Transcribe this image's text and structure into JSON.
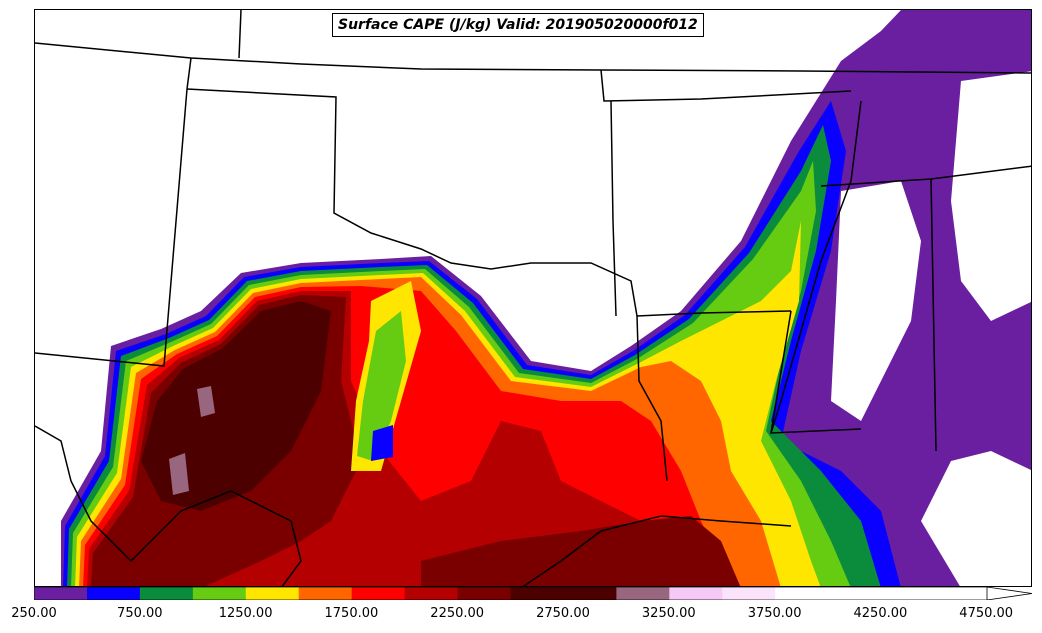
{
  "title": "Surface CAPE (J/kg) Valid: 201905020000f012",
  "legend": {
    "levels": [
      {
        "color": "#6a1fa0"
      },
      {
        "color": "#0a00ff"
      },
      {
        "color": "#0a8c3c"
      },
      {
        "color": "#66cc11"
      },
      {
        "color": "#ffe600"
      },
      {
        "color": "#ff6600"
      },
      {
        "color": "#ff0000"
      },
      {
        "color": "#b40000"
      },
      {
        "color": "#7a0000"
      },
      {
        "color": "#4d0000"
      },
      {
        "color": "#996680"
      },
      {
        "color": "#f5c8f5"
      },
      {
        "color": "#fce3fc"
      },
      {
        "color": "#ffffff"
      }
    ],
    "ticks": [
      "250.00",
      "750.00",
      "1250.00",
      "1750.00",
      "2250.00",
      "2750.00",
      "3250.00",
      "3750.00",
      "4250.00",
      "4750.00"
    ]
  }
}
